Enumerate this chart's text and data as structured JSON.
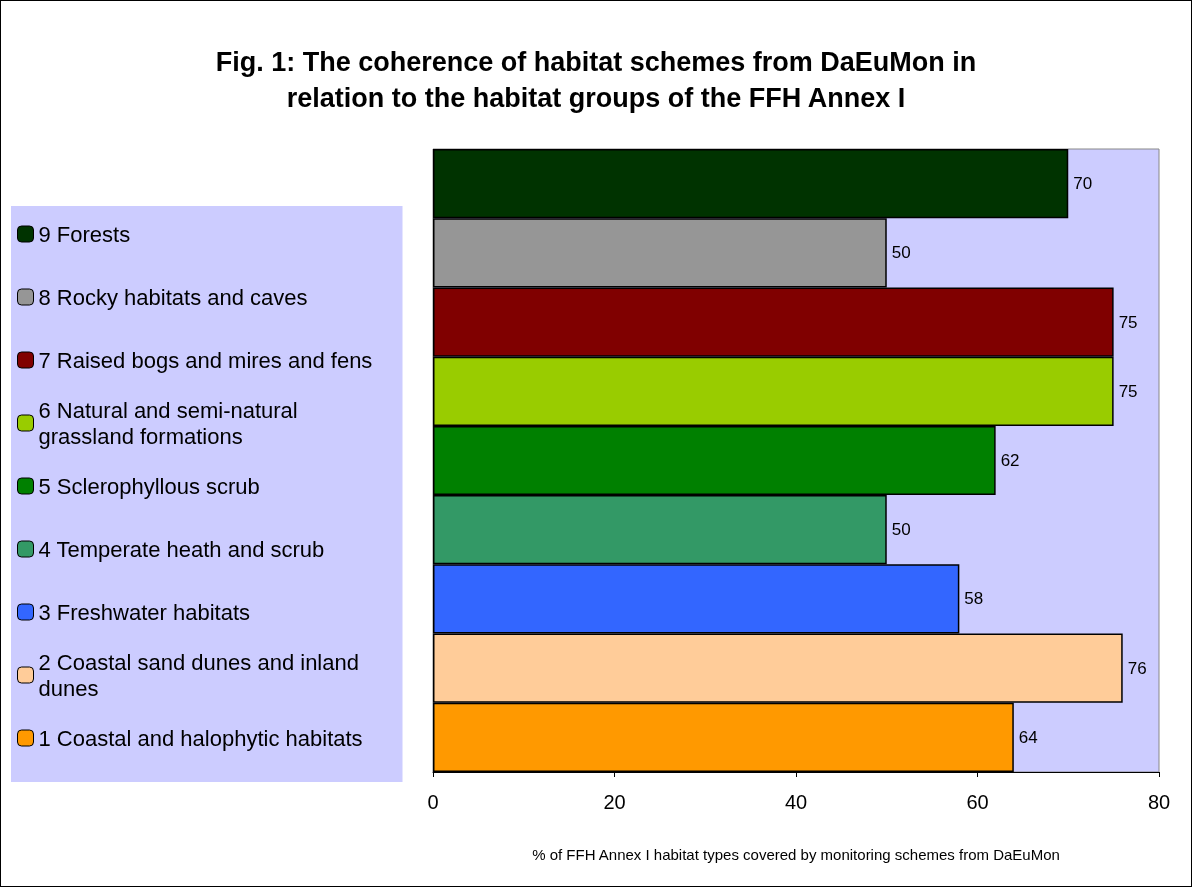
{
  "chart_data": {
    "type": "bar",
    "title": "Fig. 1: The coherence of habitat schemes from DaEuMon in\nrelation to the habitat groups of the FFH Annex I",
    "xlabel": "% of FFH Annex I habitat types covered by monitoring schemes from DaEuMon",
    "orientation": "horizontal",
    "categories": [
      null
    ],
    "series": [
      {
        "name": "9 Forests",
        "color": "#003300",
        "values": [
          70
        ]
      },
      {
        "name": "8 Rocky habitats and caves",
        "color": "#969696",
        "values": [
          50
        ]
      },
      {
        "name": "7 Raised bogs and mires and fens",
        "color": "#800000",
        "values": [
          75
        ]
      },
      {
        "name": "6 Natural and semi-natural grassland formations",
        "color": "#99cc00",
        "values": [
          75
        ]
      },
      {
        "name": "5 Sclerophyllous scrub",
        "color": "#008000",
        "values": [
          62
        ]
      },
      {
        "name": "4 Temperate heath and scrub",
        "color": "#339966",
        "values": [
          50
        ]
      },
      {
        "name": "3 Freshwater habitats",
        "color": "#3366ff",
        "values": [
          58
        ]
      },
      {
        "name": "2 Coastal sand dunes and inland dunes",
        "color": "#ffcc99",
        "values": [
          76
        ]
      },
      {
        "name": "1 Coastal and halophytic habitats",
        "color": "#ff9900",
        "values": [
          64
        ]
      }
    ],
    "xlim": [
      0,
      80
    ],
    "xticks": [
      0,
      20,
      40,
      60,
      80
    ],
    "data_labels": true,
    "legend": "left",
    "grid": false
  }
}
